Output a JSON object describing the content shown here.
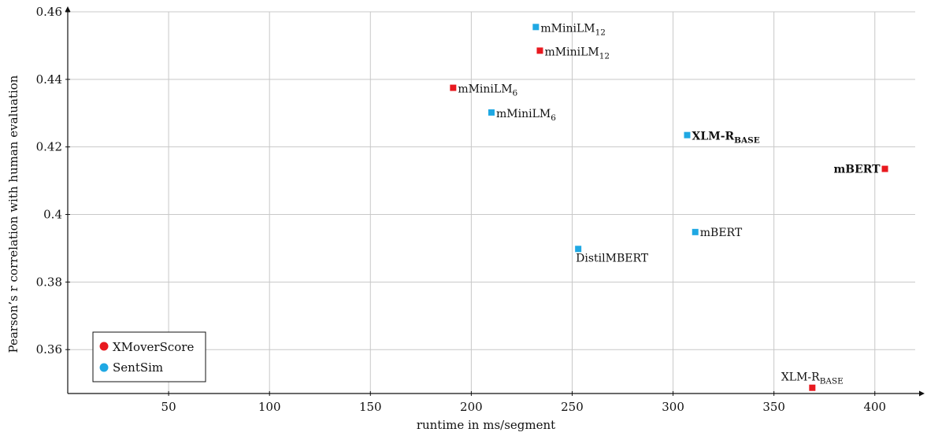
{
  "chart_data": {
    "type": "scatter",
    "title": "",
    "xlabel": "runtime in ms/segment",
    "ylabel": "Pearson’s r correlation with human evaluation",
    "xlim": [
      0,
      420
    ],
    "ylim": [
      0.347,
      0.46
    ],
    "xticks": [
      50,
      100,
      150,
      200,
      250,
      300,
      350,
      400
    ],
    "yticks": [
      0.36,
      0.38,
      0.4,
      0.42,
      0.44,
      0.46
    ],
    "xtick_labels": [
      "50",
      "100",
      "150",
      "200",
      "250",
      "300",
      "350",
      "400"
    ],
    "ytick_labels": [
      "0.36",
      "0.38",
      "0.4",
      "0.42",
      "0.44",
      "0.46"
    ],
    "grid": true,
    "legend_position": "bottom-left",
    "series": [
      {
        "name": "XMoverScore",
        "color": "#e8191f",
        "points": [
          {
            "x": 191,
            "y": 0.4375,
            "label": "mMiniLM",
            "sub": "6",
            "bold": false,
            "anchor": "right-below"
          },
          {
            "x": 234,
            "y": 0.4485,
            "label": "mMiniLM",
            "sub": "12",
            "bold": false,
            "anchor": "right-below"
          },
          {
            "x": 405,
            "y": 0.4135,
            "label": "mBERT",
            "sub": "",
            "bold": true,
            "anchor": "left"
          },
          {
            "x": 369,
            "y": 0.3487,
            "label": "XLM-R",
            "sub": "BASE",
            "bold": false,
            "anchor": "above"
          }
        ]
      },
      {
        "name": "SentSim",
        "color": "#1fa8e3",
        "points": [
          {
            "x": 232,
            "y": 0.4555,
            "label": "mMiniLM",
            "sub": "12",
            "bold": false,
            "anchor": "right-below"
          },
          {
            "x": 210,
            "y": 0.4302,
            "label": "mMiniLM",
            "sub": "6",
            "bold": false,
            "anchor": "right-below"
          },
          {
            "x": 307,
            "y": 0.4235,
            "label": "XLM-R",
            "sub": "BASE",
            "bold": true,
            "anchor": "right-below"
          },
          {
            "x": 311,
            "y": 0.3948,
            "label": "mBERT",
            "sub": "",
            "bold": false,
            "anchor": "right"
          },
          {
            "x": 253,
            "y": 0.3898,
            "label": "DistilMBERT",
            "sub": "",
            "bold": false,
            "anchor": "below"
          }
        ]
      }
    ]
  }
}
